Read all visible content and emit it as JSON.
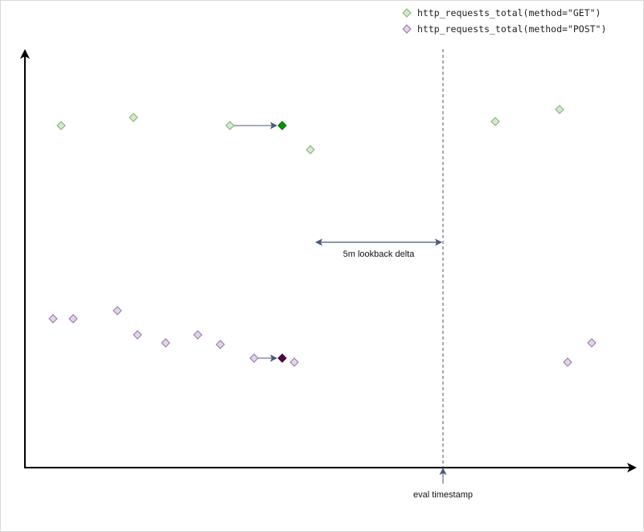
{
  "legend": {
    "items": [
      {
        "label": "http_requests_total(method=\"GET\")",
        "color": "#d5e8d4",
        "stroke": "#82b366"
      },
      {
        "label": "http_requests_total(method=\"POST\")",
        "color": "#e1d5e7",
        "stroke": "#9673a6"
      }
    ]
  },
  "annotations": {
    "lookback_label": "5m lookback delta",
    "eval_label": "eval timestamp"
  },
  "colors": {
    "get_fill": "#d5e8d4",
    "get_stroke": "#82b366",
    "get_selected": "#009900",
    "post_fill": "#e1d5e7",
    "post_stroke": "#9673a6",
    "post_selected": "#4c0a4c",
    "guide": "#4b5a7a",
    "axis": "#000000"
  }
}
